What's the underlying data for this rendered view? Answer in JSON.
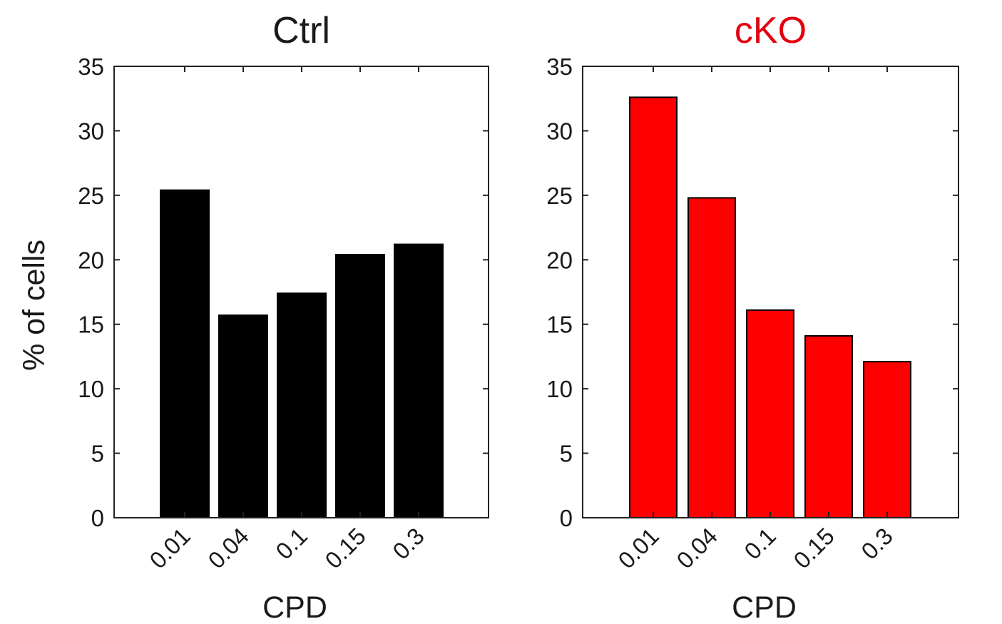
{
  "ylabel": "% of cells",
  "chart_data": [
    {
      "type": "bar",
      "title": "Ctrl",
      "title_color": "#1a1a1a",
      "bar_fill": "#000000",
      "bar_stroke": "#000000",
      "categories": [
        "0.01",
        "0.04",
        "0.1",
        "0.15",
        "0.3"
      ],
      "values": [
        25.4,
        15.7,
        17.4,
        20.4,
        21.2
      ],
      "xlabel": "CPD",
      "ylabel": "% of cells",
      "ylim": [
        0,
        35
      ],
      "yticks": [
        0,
        5,
        10,
        15,
        20,
        25,
        30,
        35
      ],
      "grid": false
    },
    {
      "type": "bar",
      "title": "cKO",
      "title_color": "#e3000f",
      "bar_fill": "#ff0000",
      "bar_stroke": "#000000",
      "categories": [
        "0.01",
        "0.04",
        "0.1",
        "0.15",
        "0.3"
      ],
      "values": [
        32.6,
        24.8,
        16.1,
        14.1,
        12.1
      ],
      "xlabel": "CPD",
      "ylabel": "",
      "ylim": [
        0,
        35
      ],
      "yticks": [
        0,
        5,
        10,
        15,
        20,
        25,
        30,
        35
      ],
      "grid": false
    }
  ]
}
